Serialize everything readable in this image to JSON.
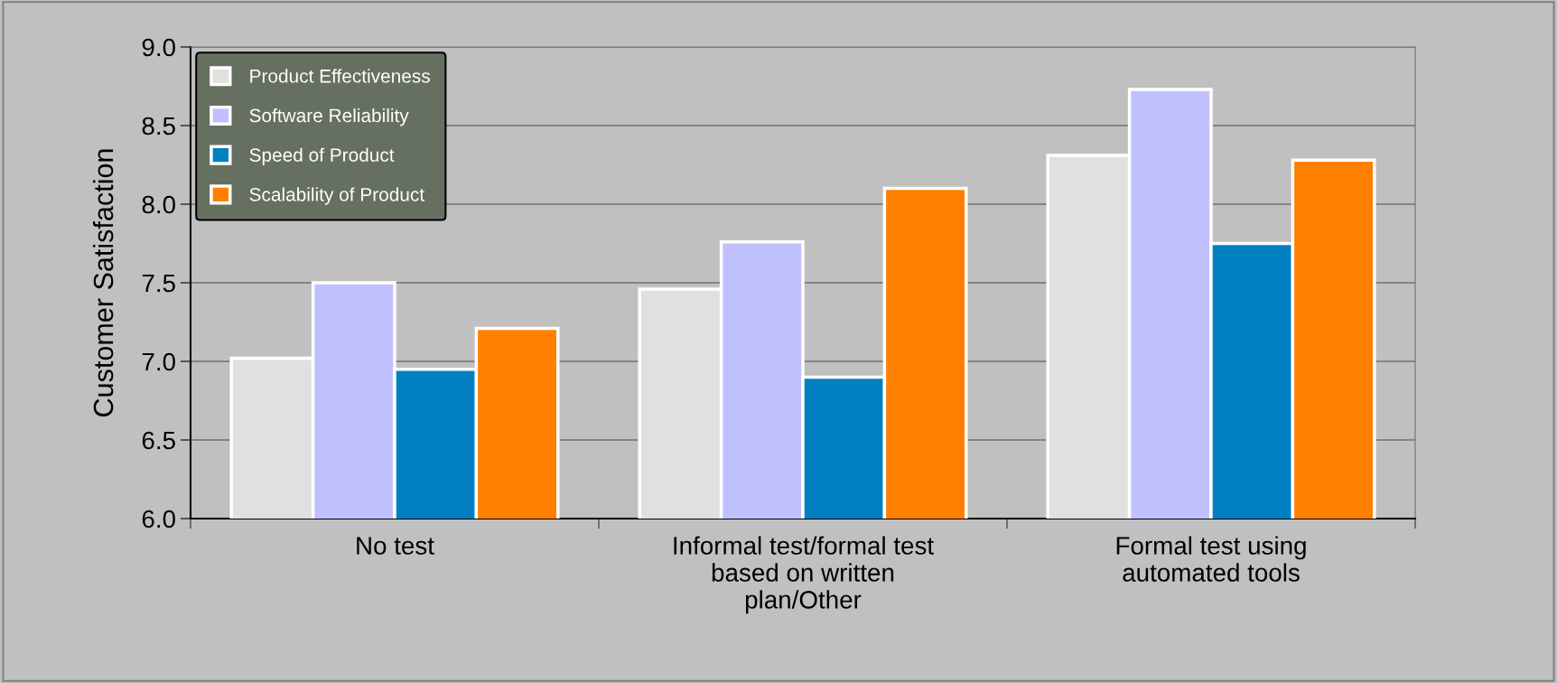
{
  "chart_data": {
    "type": "bar",
    "ylabel": "Customer Satisfaction",
    "categories": [
      "No test",
      "Informal test/formal test\nbased on written\nplan/Other",
      "Formal test using\nautomated tools"
    ],
    "series": [
      {
        "name": "Product Effectiveness",
        "color": "#e0e0e0",
        "values": [
          7.02,
          7.46,
          8.31
        ]
      },
      {
        "name": "Software Reliability",
        "color": "#c0c0ff",
        "values": [
          7.5,
          7.76,
          8.73
        ]
      },
      {
        "name": "Speed of Product",
        "color": "#0080c0",
        "values": [
          6.95,
          6.9,
          7.75
        ]
      },
      {
        "name": "Scalability of Product",
        "color": "#ff8000",
        "values": [
          7.21,
          8.1,
          8.28
        ]
      }
    ],
    "ylim": [
      6.0,
      9.0
    ],
    "yticks": [
      {
        "value": 6.0,
        "label": "6.0"
      },
      {
        "value": 6.5,
        "label": "6.5"
      },
      {
        "value": 7.0,
        "label": "7.0"
      },
      {
        "value": 7.5,
        "label": "7.5"
      },
      {
        "value": 8.0,
        "label": "8.0"
      },
      {
        "value": 8.5,
        "label": "8.5"
      },
      {
        "value": 9.0,
        "label": "9.0"
      }
    ],
    "grid": "y",
    "legend": "top left"
  }
}
